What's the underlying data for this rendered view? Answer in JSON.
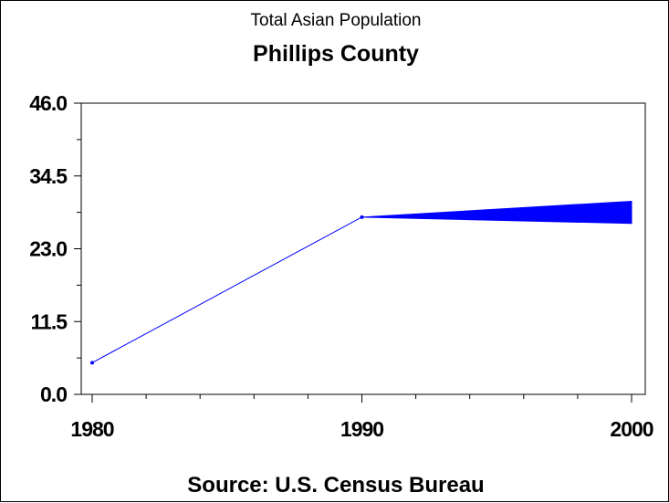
{
  "chart_data": {
    "type": "line",
    "title": "Total Asian Population",
    "subtitle": "Phillips County",
    "source": "Source: U.S. Census Bureau",
    "x": [
      1980,
      1990,
      2000
    ],
    "xticks": [
      "1980",
      "1990",
      "2000"
    ],
    "xlim": [
      1980,
      2000
    ],
    "ylim": [
      0,
      46
    ],
    "yticks": [
      "0.0",
      "11.5",
      "23.0",
      "34.5",
      "46.0"
    ],
    "series": [
      {
        "values": [
          5,
          28,
          null
        ]
      }
    ],
    "range_band": {
      "x": [
        1990,
        2000
      ],
      "lower": [
        28,
        27
      ],
      "upper": [
        28,
        30.5
      ]
    },
    "colors": {
      "series": "#0000ff",
      "axis": "#000000"
    }
  }
}
